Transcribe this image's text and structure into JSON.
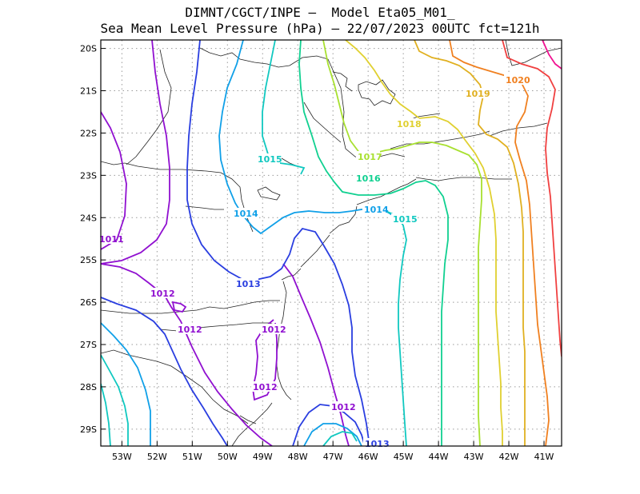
{
  "title_line1": "DIMNT/CGCT/INPE –  Model Eta05_M01_",
  "title_line2": "Sea Mean Level Pressure (hPa) – 22/07/2023 00UTC fct=121h",
  "map": {
    "lon_range": [
      -53.6,
      -40.5
    ],
    "lat_range": [
      -29.4,
      -19.8
    ],
    "lon_ticks": [
      "53W",
      "52W",
      "51W",
      "50W",
      "49W",
      "48W",
      "47W",
      "46W",
      "45W",
      "44W",
      "43W",
      "42W",
      "41W"
    ],
    "lat_ticks": [
      "20S",
      "21S",
      "22S",
      "23S",
      "24S",
      "25S",
      "26S",
      "27S",
      "28S",
      "29S"
    ],
    "grid": true
  },
  "chart_data": {
    "type": "contour",
    "variable": "Sea Mean Level Pressure (hPa)",
    "contour_labels": [
      {
        "text": "1011",
        "color": "#9010d0"
      },
      {
        "text": "1012",
        "color": "#9010d0"
      },
      {
        "text": "1012",
        "color": "#9010d0"
      },
      {
        "text": "1012",
        "color": "#9010d0"
      },
      {
        "text": "1012",
        "color": "#9010d0"
      },
      {
        "text": "1012",
        "color": "#9010d0"
      },
      {
        "text": "1013",
        "color": "#2a3ee0"
      },
      {
        "text": "1013",
        "color": "#2a3ee0"
      },
      {
        "text": "1014",
        "color": "#10a0e8"
      },
      {
        "text": "1014",
        "color": "#10a0e8"
      },
      {
        "text": "1015",
        "color": "#10c8c0"
      },
      {
        "text": "1015",
        "color": "#10c8c0"
      },
      {
        "text": "1016",
        "color": "#10d090"
      },
      {
        "text": "1017",
        "color": "#a8e030"
      },
      {
        "text": "1018",
        "color": "#e0d030"
      },
      {
        "text": "1019",
        "color": "#e0b020"
      },
      {
        "text": "1020",
        "color": "#f08020"
      }
    ],
    "colors": {
      "1011": "#9010d0",
      "1012": "#9010d0",
      "1013": "#2a3ee0",
      "1014": "#10a0e8",
      "1015": "#10c8c0",
      "1016": "#10d090",
      "1017": "#a8e030",
      "1018": "#e0d030",
      "1019": "#e0b020",
      "1020": "#f08020",
      "1021": "#f04040",
      "1022": "#f01090"
    }
  }
}
